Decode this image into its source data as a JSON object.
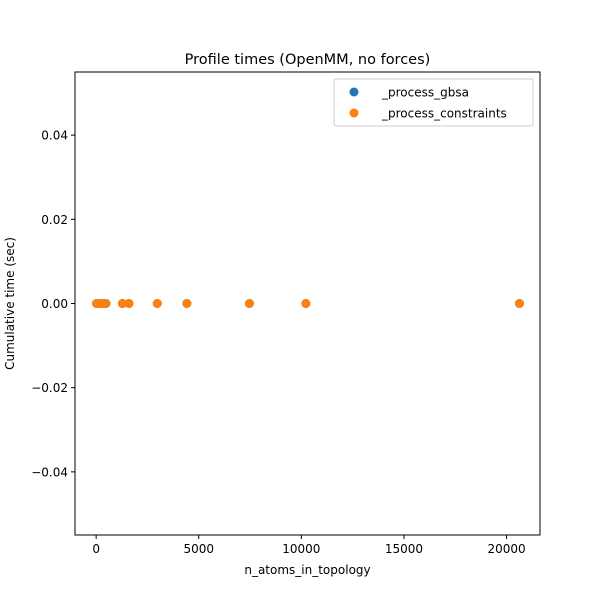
{
  "chart_data": {
    "type": "scatter",
    "title": "Profile times (OpenMM, no forces)",
    "xlabel": "n_atoms_in_topology",
    "ylabel": "Cumulative time (sec)",
    "xlim": [
      -1030,
      21630
    ],
    "ylim": [
      -0.055,
      0.055
    ],
    "xticks": [
      0,
      5000,
      10000,
      15000,
      20000
    ],
    "xtick_labels": [
      "0",
      "5000",
      "10000",
      "15000",
      "20000"
    ],
    "yticks": [
      -0.04,
      -0.02,
      0.0,
      0.02,
      0.04
    ],
    "ytick_labels": [
      "−0.04",
      "−0.02",
      "0.00",
      "0.02",
      "0.04"
    ],
    "grid": false,
    "legend_position": "top-right",
    "series": [
      {
        "name": "_process_gbsa",
        "color": "#1f77b4",
        "x": [
          22,
          200,
          350,
          480,
          1280,
          1600,
          2980,
          4420,
          7470,
          10220,
          20630
        ],
        "y": [
          0,
          0,
          0,
          0,
          0,
          0,
          0,
          0,
          0,
          0,
          0
        ]
      },
      {
        "name": "_process_constraints",
        "color": "#ff7f0e",
        "x": [
          22,
          200,
          350,
          480,
          1280,
          1600,
          2980,
          4420,
          7470,
          10220,
          20630
        ],
        "y": [
          0,
          0,
          0,
          0,
          0,
          0,
          0,
          0,
          0,
          0,
          0
        ]
      }
    ]
  }
}
